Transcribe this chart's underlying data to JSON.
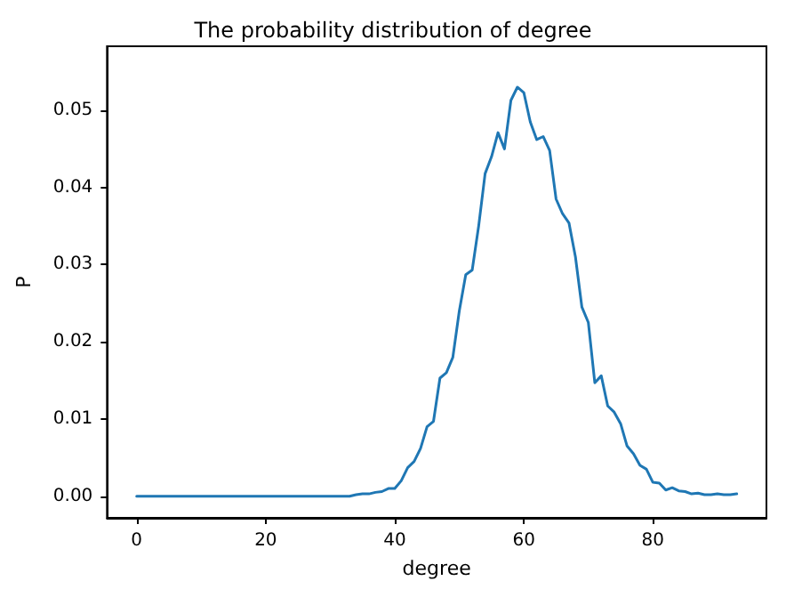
{
  "chart_data": {
    "type": "line",
    "title": "The probability distribution of degree",
    "xlabel": "degree",
    "ylabel": "P",
    "x": [
      0,
      1,
      2,
      3,
      4,
      5,
      6,
      7,
      8,
      9,
      10,
      11,
      12,
      13,
      14,
      15,
      16,
      17,
      18,
      19,
      20,
      21,
      22,
      23,
      24,
      25,
      26,
      27,
      28,
      29,
      30,
      31,
      32,
      33,
      34,
      35,
      36,
      37,
      38,
      39,
      40,
      41,
      42,
      43,
      44,
      45,
      46,
      47,
      48,
      49,
      50,
      51,
      52,
      53,
      54,
      55,
      56,
      57,
      58,
      59,
      60,
      61,
      62,
      63,
      64,
      65,
      66,
      67,
      68,
      69,
      70,
      71,
      72,
      73,
      74,
      75,
      76,
      77,
      78,
      79,
      80,
      81,
      82,
      83,
      84,
      85,
      86,
      87,
      88,
      89,
      90,
      91,
      92,
      93
    ],
    "series": [
      {
        "color": "#1f77b4",
        "values": [
          0,
          0,
          0,
          0,
          0,
          0,
          0,
          0,
          0,
          0,
          0,
          0,
          0,
          0,
          0,
          0,
          0,
          0,
          0,
          0,
          0,
          0,
          0,
          0,
          0,
          0,
          0,
          0,
          0,
          0,
          0,
          0,
          0,
          0,
          0.0002,
          0.0003,
          0.0003,
          0.0005,
          0.0006,
          0.001,
          0.001,
          0.002,
          0.0037,
          0.0045,
          0.0062,
          0.009,
          0.0097,
          0.0153,
          0.016,
          0.018,
          0.024,
          0.0287,
          0.0293,
          0.035,
          0.0418,
          0.044,
          0.0471,
          0.045,
          0.0513,
          0.053,
          0.0523,
          0.0485,
          0.0462,
          0.0466,
          0.0448,
          0.0385,
          0.0366,
          0.0354,
          0.031,
          0.0245,
          0.0225,
          0.0147,
          0.0156,
          0.0117,
          0.0109,
          0.0094,
          0.0065,
          0.0055,
          0.004,
          0.0035,
          0.0018,
          0.0017,
          0.0008,
          0.0011,
          0.0007,
          0.0006,
          0.0003,
          0.0004,
          0.0002,
          0.0002,
          0.0003,
          0.0002,
          0.0002,
          0.0003
        ]
      }
    ],
    "xlim": [
      -4.6,
      97.6
    ],
    "xticks": [
      0,
      20,
      40,
      60,
      80
    ],
    "ylim": [
      -0.0028,
      0.0583
    ],
    "yticks": [
      {
        "value": 0,
        "label": "0.00"
      },
      {
        "value": 0.01,
        "label": "0.01"
      },
      {
        "value": 0.02,
        "label": "0.02"
      },
      {
        "value": 0.03,
        "label": "0.03"
      },
      {
        "value": 0.04,
        "label": "0.04"
      },
      {
        "value": 0.05,
        "label": "0.05"
      }
    ],
    "grid": false,
    "marker": "none",
    "line_style": "solid"
  }
}
